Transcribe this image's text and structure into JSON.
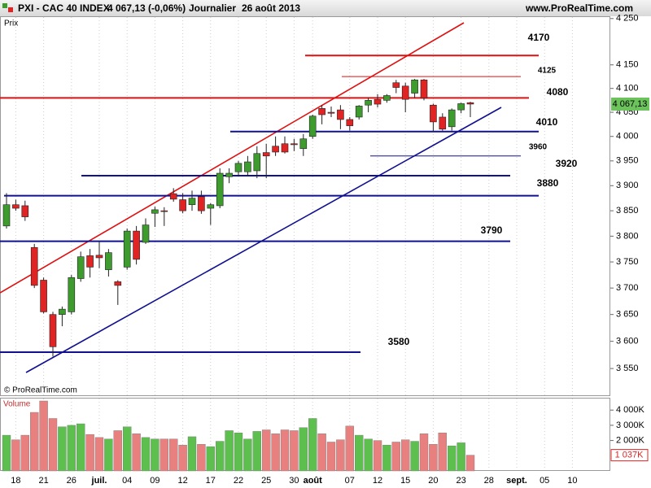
{
  "header": {
    "symbol": "PXI - CAC 40 INDEX",
    "quote": "4 067,13 (-0,06%)",
    "period": "Journalier",
    "date": "26 août 2013",
    "site": "www.ProRealTime.com",
    "copyright": "© ProRealTime.com"
  },
  "chart_data": [
    {
      "type": "candlestick",
      "y_label": "Prix",
      "log_scale": true,
      "ylim": [
        3500,
        4255
      ],
      "yticks": [
        {
          "value": 4250,
          "label": "4 250"
        },
        {
          "value": 4150,
          "label": "4 150"
        },
        {
          "value": 4100,
          "label": "4 100"
        },
        {
          "value": 4050,
          "label": "4 050"
        },
        {
          "value": 4000,
          "label": "4 000"
        },
        {
          "value": 3950,
          "label": "3 950"
        },
        {
          "value": 3900,
          "label": "3 900"
        },
        {
          "value": 3850,
          "label": "3 850"
        },
        {
          "value": 3800,
          "label": "3 800"
        },
        {
          "value": 3750,
          "label": "3 750"
        },
        {
          "value": 3700,
          "label": "3 700"
        },
        {
          "value": 3650,
          "label": "3 650"
        },
        {
          "value": 3600,
          "label": "3 600"
        },
        {
          "value": 3550,
          "label": "3 550"
        }
      ],
      "up_color": "#3e9b2e",
      "down_color": "#e02424",
      "open": [
        3820,
        3862,
        3860,
        3778,
        3715,
        3650,
        3650,
        3655,
        3718,
        3762,
        3763,
        3735,
        3712,
        3740,
        3810,
        3788,
        3845,
        3850,
        3884,
        3872,
        3862,
        3878,
        3855,
        3860,
        3918,
        3928,
        3928,
        3930,
        3967,
        3980,
        3985,
        3985,
        3975,
        4000,
        4058,
        4050,
        4055,
        4035,
        4040,
        4065,
        4077,
        4075,
        4112,
        4105,
        4090,
        4118,
        4065,
        4040,
        4020,
        4055,
        4070
      ],
      "high": [
        3885,
        3872,
        3870,
        3785,
        3720,
        3655,
        3665,
        3725,
        3770,
        3775,
        3790,
        3775,
        3715,
        3815,
        3820,
        3835,
        3858,
        3857,
        3895,
        3885,
        3890,
        3890,
        3865,
        3935,
        3935,
        3950,
        3960,
        3980,
        3985,
        4000,
        4000,
        3995,
        4005,
        4045,
        4065,
        4062,
        4065,
        4040,
        4065,
        4080,
        4088,
        4088,
        4118,
        4112,
        4120,
        4120,
        4068,
        4048,
        4058,
        4070,
        4072
      ],
      "low": [
        3815,
        3850,
        3830,
        3700,
        3652,
        3572,
        3628,
        3650,
        3712,
        3720,
        3738,
        3722,
        3668,
        3735,
        3745,
        3785,
        3818,
        3820,
        3868,
        3845,
        3850,
        3844,
        3822,
        3855,
        3905,
        3920,
        3920,
        3915,
        3915,
        3960,
        3965,
        3970,
        3960,
        3995,
        4025,
        4040,
        4015,
        4012,
        4035,
        4050,
        4060,
        4070,
        4090,
        4050,
        4080,
        4075,
        4010,
        4012,
        4012,
        4048,
        4040
      ],
      "close": [
        3862,
        3855,
        3838,
        3705,
        3655,
        3590,
        3660,
        3720,
        3760,
        3740,
        3758,
        3768,
        3705,
        3810,
        3755,
        3822,
        3852,
        3849,
        3873,
        3850,
        3875,
        3850,
        3862,
        3925,
        3925,
        3945,
        3948,
        3965,
        3960,
        3968,
        3968,
        3983,
        3995,
        4042,
        4045,
        4048,
        4035,
        4022,
        4063,
        4075,
        4067,
        4085,
        4102,
        4077,
        4118,
        4080,
        4030,
        4015,
        4055,
        4068,
        4067.13
      ],
      "price_label": {
        "value": 4067.13,
        "label": "4 067,13"
      },
      "levels": [
        {
          "value": 4170,
          "color": "#e01010"
        },
        {
          "value": 4125,
          "color": "#e01010"
        },
        {
          "value": 4080,
          "color": "#e01010"
        },
        {
          "value": 4010,
          "color": "#101090"
        },
        {
          "value": 3960,
          "color": "#101090"
        },
        {
          "value": 3920,
          "color": "#101090"
        },
        {
          "value": 3880,
          "color": "#101090"
        },
        {
          "value": 3790,
          "color": "#101090"
        },
        {
          "value": 3580,
          "color": "#101090"
        }
      ]
    },
    {
      "type": "bar",
      "title": "Volume",
      "categories": [
        null,
        "18",
        null,
        null,
        "21",
        null,
        null,
        "26",
        null,
        null,
        "juil.",
        null,
        null,
        "04",
        null,
        null,
        "09",
        null,
        null,
        "12",
        null,
        null,
        "17",
        null,
        null,
        "22",
        null,
        null,
        "25",
        null,
        null,
        "30",
        null,
        "août",
        null,
        null,
        null,
        "07",
        null,
        null,
        "12",
        null,
        null,
        "15",
        null,
        null,
        "20",
        null,
        null,
        "23",
        null,
        null,
        "28",
        null,
        null,
        "sept.",
        null,
        null,
        "05",
        null,
        null,
        "10"
      ],
      "values": [
        2350,
        2050,
        2350,
        3850,
        4600,
        3450,
        2900,
        3000,
        3100,
        2400,
        2200,
        2100,
        2650,
        2900,
        2450,
        2200,
        2100,
        2100,
        2100,
        1700,
        2250,
        1750,
        1600,
        1950,
        2650,
        2500,
        2100,
        2600,
        2700,
        2450,
        2700,
        2650,
        2850,
        3450,
        2450,
        1900,
        2050,
        2950,
        2350,
        2100,
        2000,
        1700,
        1900,
        2050,
        1950,
        2450,
        1750,
        2500,
        1650,
        1850,
        1037,
        null,
        null,
        null,
        null,
        null,
        null,
        null,
        null,
        null,
        null,
        null
      ],
      "up_color": "#5cbf4e",
      "down_color": "#e98080",
      "ylim": [
        0,
        4760
      ],
      "yticks": [
        {
          "value": 4000,
          "label": "4 000K"
        },
        {
          "value": 3000,
          "label": "3 000K"
        },
        {
          "value": 2000,
          "label": "2 000K"
        }
      ],
      "current": {
        "value": 1037,
        "label": "1 037K"
      }
    }
  ]
}
